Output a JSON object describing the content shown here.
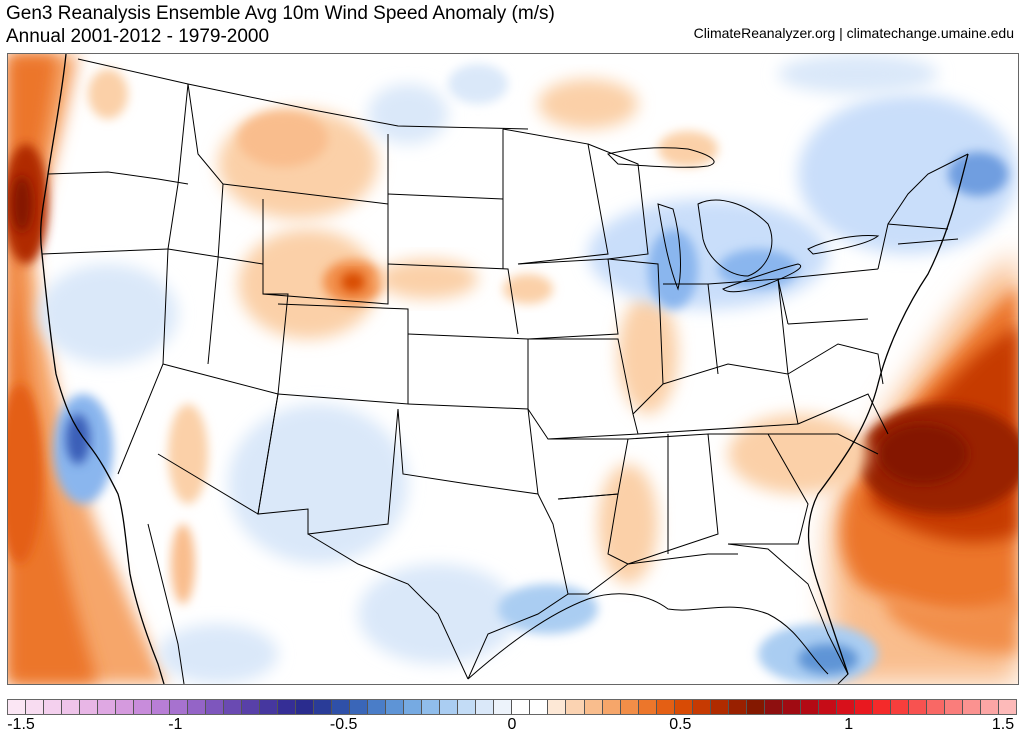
{
  "header": {
    "title": "Gen3 Reanalysis Ensemble Avg 10m Wind Speed Anomaly (m/s)",
    "subtitle": "Annual 2001-2012 - 1979-2000",
    "credit": "ClimateReanalyzer.org | climatechange.umaine.edu"
  },
  "colorbar": {
    "colors": [
      "#fbe6f4",
      "#f8dcf1",
      "#f4d0ee",
      "#efc4ea",
      "#e8b6e6",
      "#dfa8e3",
      "#d59ade",
      "#c88cdb",
      "#b87ed6",
      "#a772cf",
      "#9464c7",
      "#7e56bd",
      "#6a4ab2",
      "#5840a8",
      "#46379f",
      "#352e96",
      "#2a2c8e",
      "#2a3c98",
      "#2f50a8",
      "#3a66b8",
      "#4a7dc8",
      "#5e94d6",
      "#76aae2",
      "#90bdeb",
      "#aacdf2",
      "#c3dcf6",
      "#dae8f9",
      "#edf3fb",
      "#ffffff",
      "#ffffff",
      "#fde8d6",
      "#fbd3b2",
      "#f9bd8d",
      "#f6a66a",
      "#f28e48",
      "#ec762b",
      "#e45f14",
      "#d84b05",
      "#c63a02",
      "#b02b00",
      "#992000",
      "#841800",
      "#8e0f0f",
      "#a00b12",
      "#b30a14",
      "#c60c17",
      "#d8101b",
      "#e9181f",
      "#f42a2a",
      "#f73e3c",
      "#f85250",
      "#f96865",
      "#fa7d7b",
      "#fb9290",
      "#fca6a5",
      "#fdbab9"
    ],
    "labels": [
      "-1.5",
      "-1",
      "-0.5",
      "0",
      "0.5",
      "1",
      "1.5"
    ]
  },
  "map": {
    "region": "Contiguous United States",
    "variable": "10m wind speed anomaly",
    "units": "m/s",
    "value_range": [
      -1.5,
      1.5
    ],
    "palette": {
      "ocean_strong": "#a11f00",
      "ocean_orange": "#f07a20",
      "light_orange": "#fbd0a8",
      "light_blue": "#c9defa",
      "mid_blue": "#8ab6ee",
      "deep_blue": "#3b5fb8",
      "outline": "#000000"
    }
  }
}
